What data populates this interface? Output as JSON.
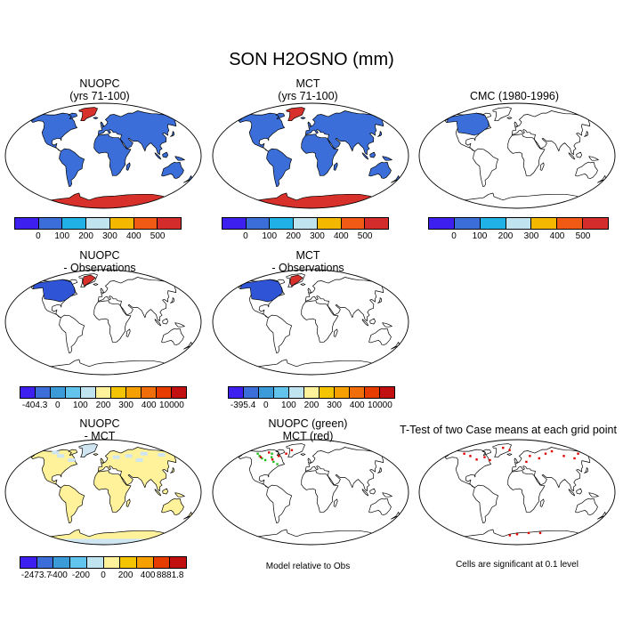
{
  "title": "SON H2OSNO (mm)",
  "colors": {
    "land": "#3b6ed9",
    "antarctic": "#d8312b",
    "greenland": "#d8312b",
    "obs_diff": "#2f55d6",
    "nuopc_mct_diff": "#fff29a",
    "nuopc_mct_light": "#cfe6f2",
    "scatter_green": "#1fbf1f",
    "scatter_red": "#e00000"
  },
  "scale6": {
    "colors": [
      "#3d1ff0",
      "#3b6ed9",
      "#20b2e6",
      "#bfe3ef",
      "#f5b800",
      "#f05a14",
      "#d42b2b"
    ],
    "labels": [
      "0",
      "100",
      "200",
      "300",
      "400",
      "500"
    ]
  },
  "scale_obs": {
    "colors": [
      "#3d1ff0",
      "#3b6ed9",
      "#3b9bd9",
      "#62c3ec",
      "#bfe3ef",
      "#fff29a",
      "#f5c400",
      "#f5a000",
      "#f06e0a",
      "#e63c00",
      "#c21010"
    ],
    "labels_left": [
      "-404.3",
      "0",
      "100",
      "200",
      "300",
      "400",
      "10000"
    ],
    "labels_mid": [
      "-395.4",
      "0",
      "100",
      "200",
      "300",
      "400",
      "10000"
    ]
  },
  "scale_diff": {
    "colors": [
      "#3d1ff0",
      "#3b6ed9",
      "#3b9bd9",
      "#62c3ec",
      "#bfe3ef",
      "#fff29a",
      "#f5c400",
      "#f5a000",
      "#e63c00",
      "#c21010"
    ],
    "labels": [
      "-2473.7",
      "-400",
      "-200",
      "0",
      "200",
      "400",
      "8881.8"
    ]
  },
  "panels": {
    "p1": {
      "line1": "NUOPC",
      "line2": "(yrs 71-100)"
    },
    "p2": {
      "line1": "MCT",
      "line2": "(yrs 71-100)"
    },
    "p3": {
      "line1": "CMC (1980-1996)"
    },
    "p4": {
      "line1": "NUOPC",
      "line2": "- Observations"
    },
    "p5": {
      "line1": "MCT",
      "line2": "- Observations"
    },
    "p7": {
      "line1": "NUOPC",
      "line2": "- MCT"
    },
    "p8": {
      "line1": "NUOPC (green)",
      "line2": "MCT (red)",
      "footnote": "Model relative to Obs"
    },
    "p9": {
      "line1": "T-Test of two Case means at each grid point",
      "footnote": "Cells are significant at 0.1 level"
    }
  }
}
